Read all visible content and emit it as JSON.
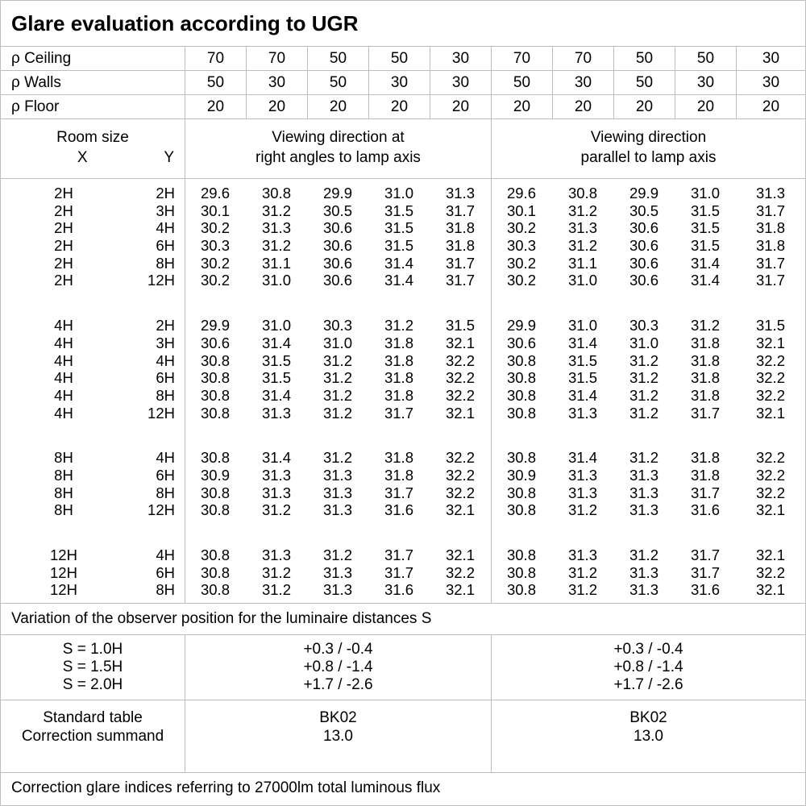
{
  "title": "Glare evaluation according to UGR",
  "reflectance_table": {
    "rows": [
      {
        "label": "ρ Ceiling",
        "values": [
          "70",
          "70",
          "50",
          "50",
          "30",
          "70",
          "70",
          "50",
          "50",
          "30"
        ]
      },
      {
        "label": "ρ Walls",
        "values": [
          "50",
          "30",
          "50",
          "30",
          "30",
          "50",
          "30",
          "50",
          "30",
          "30"
        ]
      },
      {
        "label": "ρ Floor",
        "values": [
          "20",
          "20",
          "20",
          "20",
          "20",
          "20",
          "20",
          "20",
          "20",
          "20"
        ]
      }
    ]
  },
  "header": {
    "room_size_label": "Room size",
    "x_label": "X",
    "y_label": "Y",
    "right_angles_header": [
      "Viewing direction at",
      "right angles to lamp axis"
    ],
    "parallel_header": [
      "Viewing direction",
      "parallel to lamp axis"
    ]
  },
  "ugr_table": {
    "groups": [
      {
        "x": "2H",
        "rows": [
          {
            "y": "2H",
            "right_angles": [
              "29.6",
              "30.8",
              "29.9",
              "31.0",
              "31.3"
            ],
            "parallel": [
              "29.6",
              "30.8",
              "29.9",
              "31.0",
              "31.3"
            ]
          },
          {
            "y": "3H",
            "right_angles": [
              "30.1",
              "31.2",
              "30.5",
              "31.5",
              "31.7"
            ],
            "parallel": [
              "30.1",
              "31.2",
              "30.5",
              "31.5",
              "31.7"
            ]
          },
          {
            "y": "4H",
            "right_angles": [
              "30.2",
              "31.3",
              "30.6",
              "31.5",
              "31.8"
            ],
            "parallel": [
              "30.2",
              "31.3",
              "30.6",
              "31.5",
              "31.8"
            ]
          },
          {
            "y": "6H",
            "right_angles": [
              "30.3",
              "31.2",
              "30.6",
              "31.5",
              "31.8"
            ],
            "parallel": [
              "30.3",
              "31.2",
              "30.6",
              "31.5",
              "31.8"
            ]
          },
          {
            "y": "8H",
            "right_angles": [
              "30.2",
              "31.1",
              "30.6",
              "31.4",
              "31.7"
            ],
            "parallel": [
              "30.2",
              "31.1",
              "30.6",
              "31.4",
              "31.7"
            ]
          },
          {
            "y": "12H",
            "right_angles": [
              "30.2",
              "31.0",
              "30.6",
              "31.4",
              "31.7"
            ],
            "parallel": [
              "30.2",
              "31.0",
              "30.6",
              "31.4",
              "31.7"
            ]
          }
        ]
      },
      {
        "x": "4H",
        "rows": [
          {
            "y": "2H",
            "right_angles": [
              "29.9",
              "31.0",
              "30.3",
              "31.2",
              "31.5"
            ],
            "parallel": [
              "29.9",
              "31.0",
              "30.3",
              "31.2",
              "31.5"
            ]
          },
          {
            "y": "3H",
            "right_angles": [
              "30.6",
              "31.4",
              "31.0",
              "31.8",
              "32.1"
            ],
            "parallel": [
              "30.6",
              "31.4",
              "31.0",
              "31.8",
              "32.1"
            ]
          },
          {
            "y": "4H",
            "right_angles": [
              "30.8",
              "31.5",
              "31.2",
              "31.8",
              "32.2"
            ],
            "parallel": [
              "30.8",
              "31.5",
              "31.2",
              "31.8",
              "32.2"
            ]
          },
          {
            "y": "6H",
            "right_angles": [
              "30.8",
              "31.5",
              "31.2",
              "31.8",
              "32.2"
            ],
            "parallel": [
              "30.8",
              "31.5",
              "31.2",
              "31.8",
              "32.2"
            ]
          },
          {
            "y": "8H",
            "right_angles": [
              "30.8",
              "31.4",
              "31.2",
              "31.8",
              "32.2"
            ],
            "parallel": [
              "30.8",
              "31.4",
              "31.2",
              "31.8",
              "32.2"
            ]
          },
          {
            "y": "12H",
            "right_angles": [
              "30.8",
              "31.3",
              "31.2",
              "31.7",
              "32.1"
            ],
            "parallel": [
              "30.8",
              "31.3",
              "31.2",
              "31.7",
              "32.1"
            ]
          }
        ]
      },
      {
        "x": "8H",
        "rows": [
          {
            "y": "4H",
            "right_angles": [
              "30.8",
              "31.4",
              "31.2",
              "31.8",
              "32.2"
            ],
            "parallel": [
              "30.8",
              "31.4",
              "31.2",
              "31.8",
              "32.2"
            ]
          },
          {
            "y": "6H",
            "right_angles": [
              "30.9",
              "31.3",
              "31.3",
              "31.8",
              "32.2"
            ],
            "parallel": [
              "30.9",
              "31.3",
              "31.3",
              "31.8",
              "32.2"
            ]
          },
          {
            "y": "8H",
            "right_angles": [
              "30.8",
              "31.3",
              "31.3",
              "31.7",
              "32.2"
            ],
            "parallel": [
              "30.8",
              "31.3",
              "31.3",
              "31.7",
              "32.2"
            ]
          },
          {
            "y": "12H",
            "right_angles": [
              "30.8",
              "31.2",
              "31.3",
              "31.6",
              "32.1"
            ],
            "parallel": [
              "30.8",
              "31.2",
              "31.3",
              "31.6",
              "32.1"
            ]
          }
        ]
      },
      {
        "x": "12H",
        "rows": [
          {
            "y": "4H",
            "right_angles": [
              "30.8",
              "31.3",
              "31.2",
              "31.7",
              "32.1"
            ],
            "parallel": [
              "30.8",
              "31.3",
              "31.2",
              "31.7",
              "32.1"
            ]
          },
          {
            "y": "6H",
            "right_angles": [
              "30.8",
              "31.2",
              "31.3",
              "31.7",
              "32.2"
            ],
            "parallel": [
              "30.8",
              "31.2",
              "31.3",
              "31.7",
              "32.2"
            ]
          },
          {
            "y": "8H",
            "right_angles": [
              "30.8",
              "31.2",
              "31.3",
              "31.6",
              "32.1"
            ],
            "parallel": [
              "30.8",
              "31.2",
              "31.3",
              "31.6",
              "32.1"
            ]
          }
        ]
      }
    ]
  },
  "variation_note": "Variation of the observer position for the luminaire distances S",
  "spacing_section": {
    "rows": [
      {
        "label": "S = 1.0H",
        "right_angles_value": "+0.3 / -0.4",
        "parallel_value": "+0.3 / -0.4"
      },
      {
        "label": "S = 1.5H",
        "right_angles_value": "+0.8 / -1.4",
        "parallel_value": "+0.8 / -1.4"
      },
      {
        "label": "S = 2.0H",
        "right_angles_value": "+1.7 / -2.6",
        "parallel_value": "+1.7 / -2.6"
      }
    ]
  },
  "standard_section": {
    "rows": [
      {
        "label": "Standard table",
        "right_angles_value": "BK02",
        "parallel_value": "BK02"
      },
      {
        "label": "Correction summand",
        "right_angles_value": "13.0",
        "parallel_value": "13.0"
      }
    ]
  },
  "footer_note": "Correction glare indices referring to 27000lm total luminous flux",
  "colors": {
    "grid_line": "#bdbdbd",
    "text": "#000000",
    "background": "#ffffff"
  }
}
